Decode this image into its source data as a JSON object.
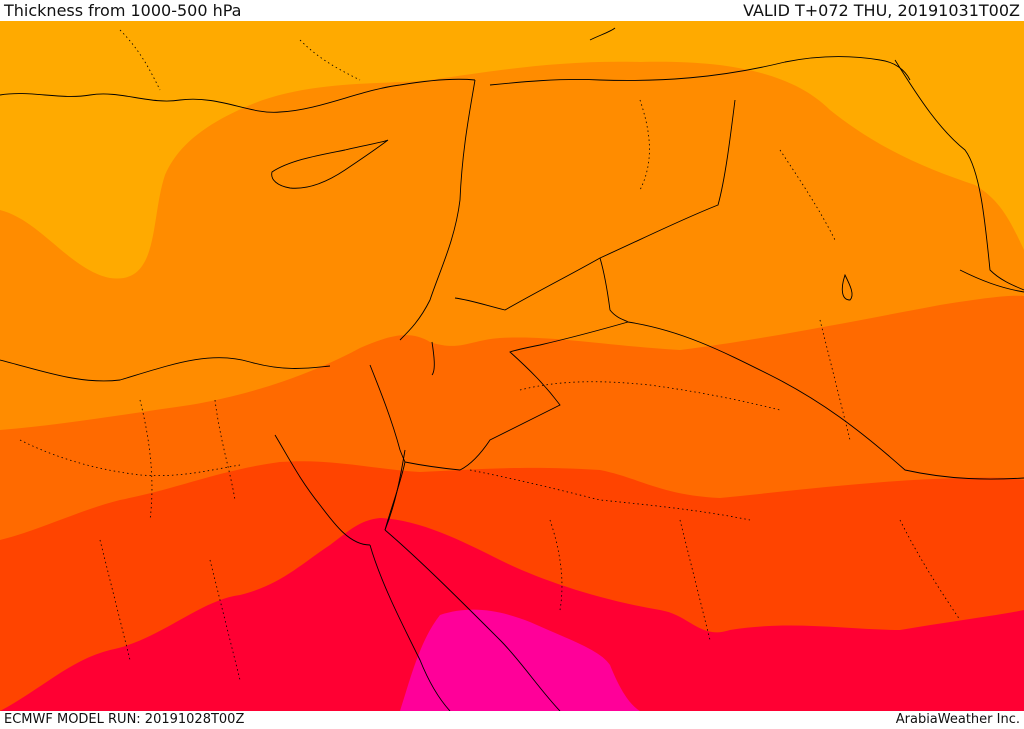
{
  "header": {
    "title": "Thickness from 1000-500 hPa",
    "valid": "VALID T+072 THU, 20191031T00Z"
  },
  "footer": {
    "run": "ECMWF MODEL RUN: 20191028T00Z",
    "credit": "ArabiaWeather Inc."
  },
  "colors": {
    "band1": "#ffaa00",
    "band2": "#ff8c00",
    "band3": "#ff6a00",
    "band4": "#ff4400",
    "band5": "#ff0033",
    "band6": "#ff0099",
    "border": "#000000"
  }
}
